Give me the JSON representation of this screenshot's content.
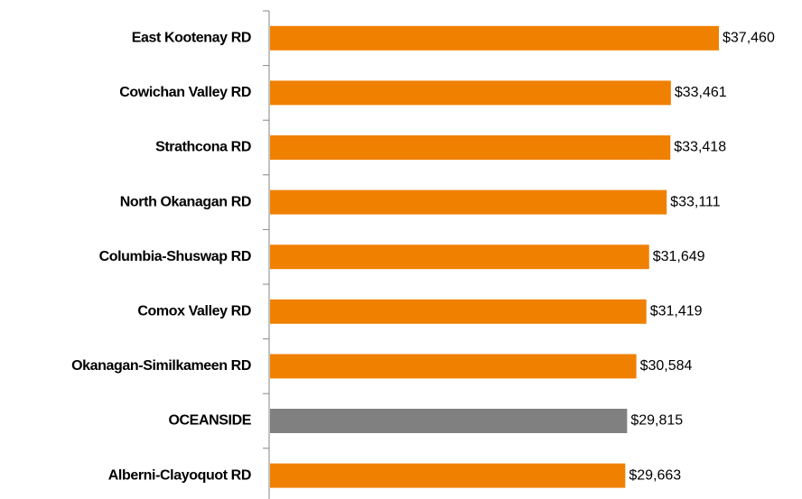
{
  "chart_data": {
    "type": "bar",
    "orientation": "horizontal",
    "categories": [
      "East Kootenay RD",
      "Cowichan Valley RD",
      "Strathcona RD",
      "North Okanagan RD",
      "Columbia-Shuswap RD",
      "Comox Valley RD",
      "Okanagan-Similkameen RD",
      "OCEANSIDE",
      "Alberni-Clayoquot RD"
    ],
    "values": [
      37460,
      33461,
      33418,
      33111,
      31649,
      31419,
      30584,
      29815,
      29663
    ],
    "value_labels": [
      "$37,460",
      "$33,461",
      "$33,418",
      "$33,111",
      "$31,649",
      "$31,419",
      "$30,584",
      "$29,815",
      "$29,663"
    ],
    "colors": [
      "#f08000",
      "#f08000",
      "#f08000",
      "#f08000",
      "#f08000",
      "#f08000",
      "#f08000",
      "#808080",
      "#f08000"
    ]
  }
}
